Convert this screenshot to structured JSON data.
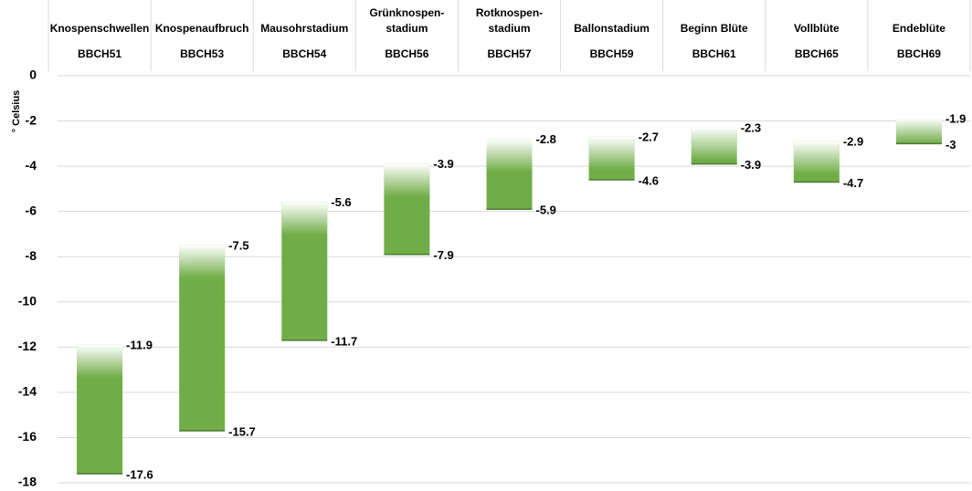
{
  "chart_data": {
    "type": "range_bar",
    "y_label": "° Celsius",
    "categories": [
      "Knospenschwellen",
      "Knospenaufbruch",
      "Mausohrstadium",
      "Grünknospen-\nstadium",
      "Rotknospen-\nstadium",
      "Ballonstadium",
      "Beginn Blüte",
      "Vollblüte",
      "Endeblüte"
    ],
    "codes": [
      "BBCH51",
      "BBCH53",
      "BBCH54",
      "BBCH56",
      "BBCH57",
      "BBCH59",
      "BBCH61",
      "BBCH65",
      "BBCH69"
    ],
    "upper": [
      -11.9,
      -7.5,
      -5.6,
      -3.9,
      -2.8,
      -2.7,
      -2.3,
      -2.9,
      -1.9
    ],
    "lower": [
      -17.6,
      -15.7,
      -11.7,
      -7.9,
      -5.9,
      -4.6,
      -3.9,
      -4.7,
      -3
    ],
    "color": "#70ad47",
    "ylim": [
      -18,
      0
    ],
    "yticks": [
      0,
      -2,
      -4,
      -6,
      -8,
      -10,
      -12,
      -14,
      -16,
      -18
    ],
    "grid": true
  }
}
